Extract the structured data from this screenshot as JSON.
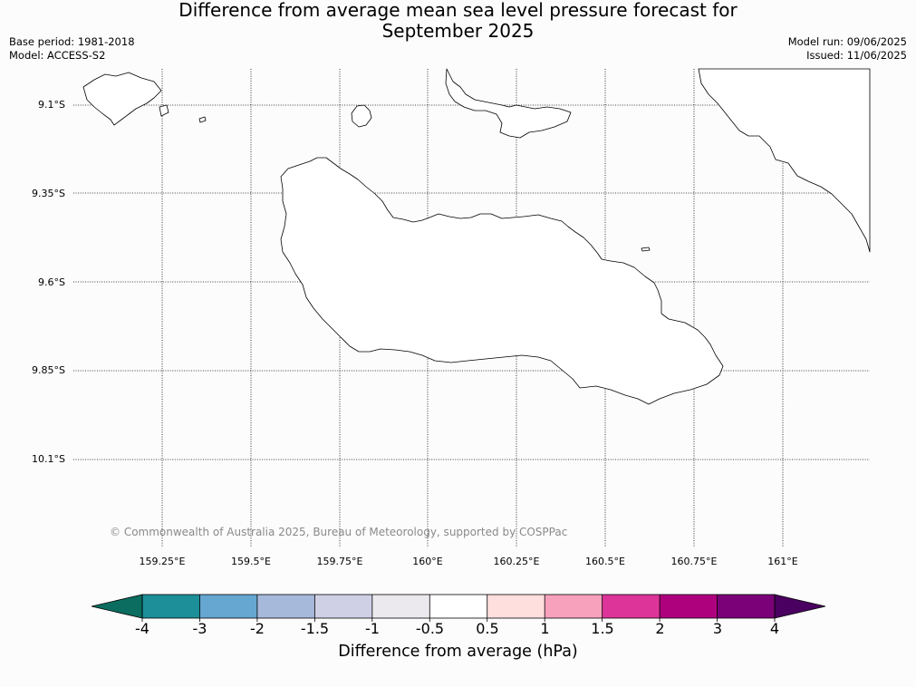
{
  "header": {
    "title_line1": "Difference from average mean sea level pressure forecast for",
    "title_line2": "September 2025",
    "base_period": "Base period: 1981-2018",
    "model": "Model: ACCESS-S2",
    "model_run": "Model run: 09/06/2025",
    "issued": "Issued: 11/06/2025"
  },
  "map": {
    "lat_labels": [
      "9.1°S",
      "9.35°S",
      "9.6°S",
      "9.85°S",
      "10.1°S"
    ],
    "lon_labels": [
      "159.25°E",
      "159.5°E",
      "159.75°E",
      "160°E",
      "160.25°E",
      "160.5°E",
      "160.75°E",
      "161°E"
    ],
    "copyright": "© Commonwealth of Australia 2025, Bureau of Meteorology, supported by COSPPac"
  },
  "colorbar": {
    "label": "Difference from average (hPa)",
    "ticks": [
      "-4",
      "-3",
      "-2",
      "-1.5",
      "-1",
      "-0.5",
      "0.5",
      "1",
      "1.5",
      "2",
      "3",
      "4"
    ],
    "colors": [
      "#1c8f98",
      "#65a7d1",
      "#a7b9db",
      "#cfd0e6",
      "#ebe8ee",
      "#ffffff",
      "#ffdede",
      "#f8a1bd",
      "#dd3499",
      "#ae017e",
      "#7a0177"
    ],
    "under_color": "#0b6d5f",
    "over_color": "#4a0060"
  }
}
